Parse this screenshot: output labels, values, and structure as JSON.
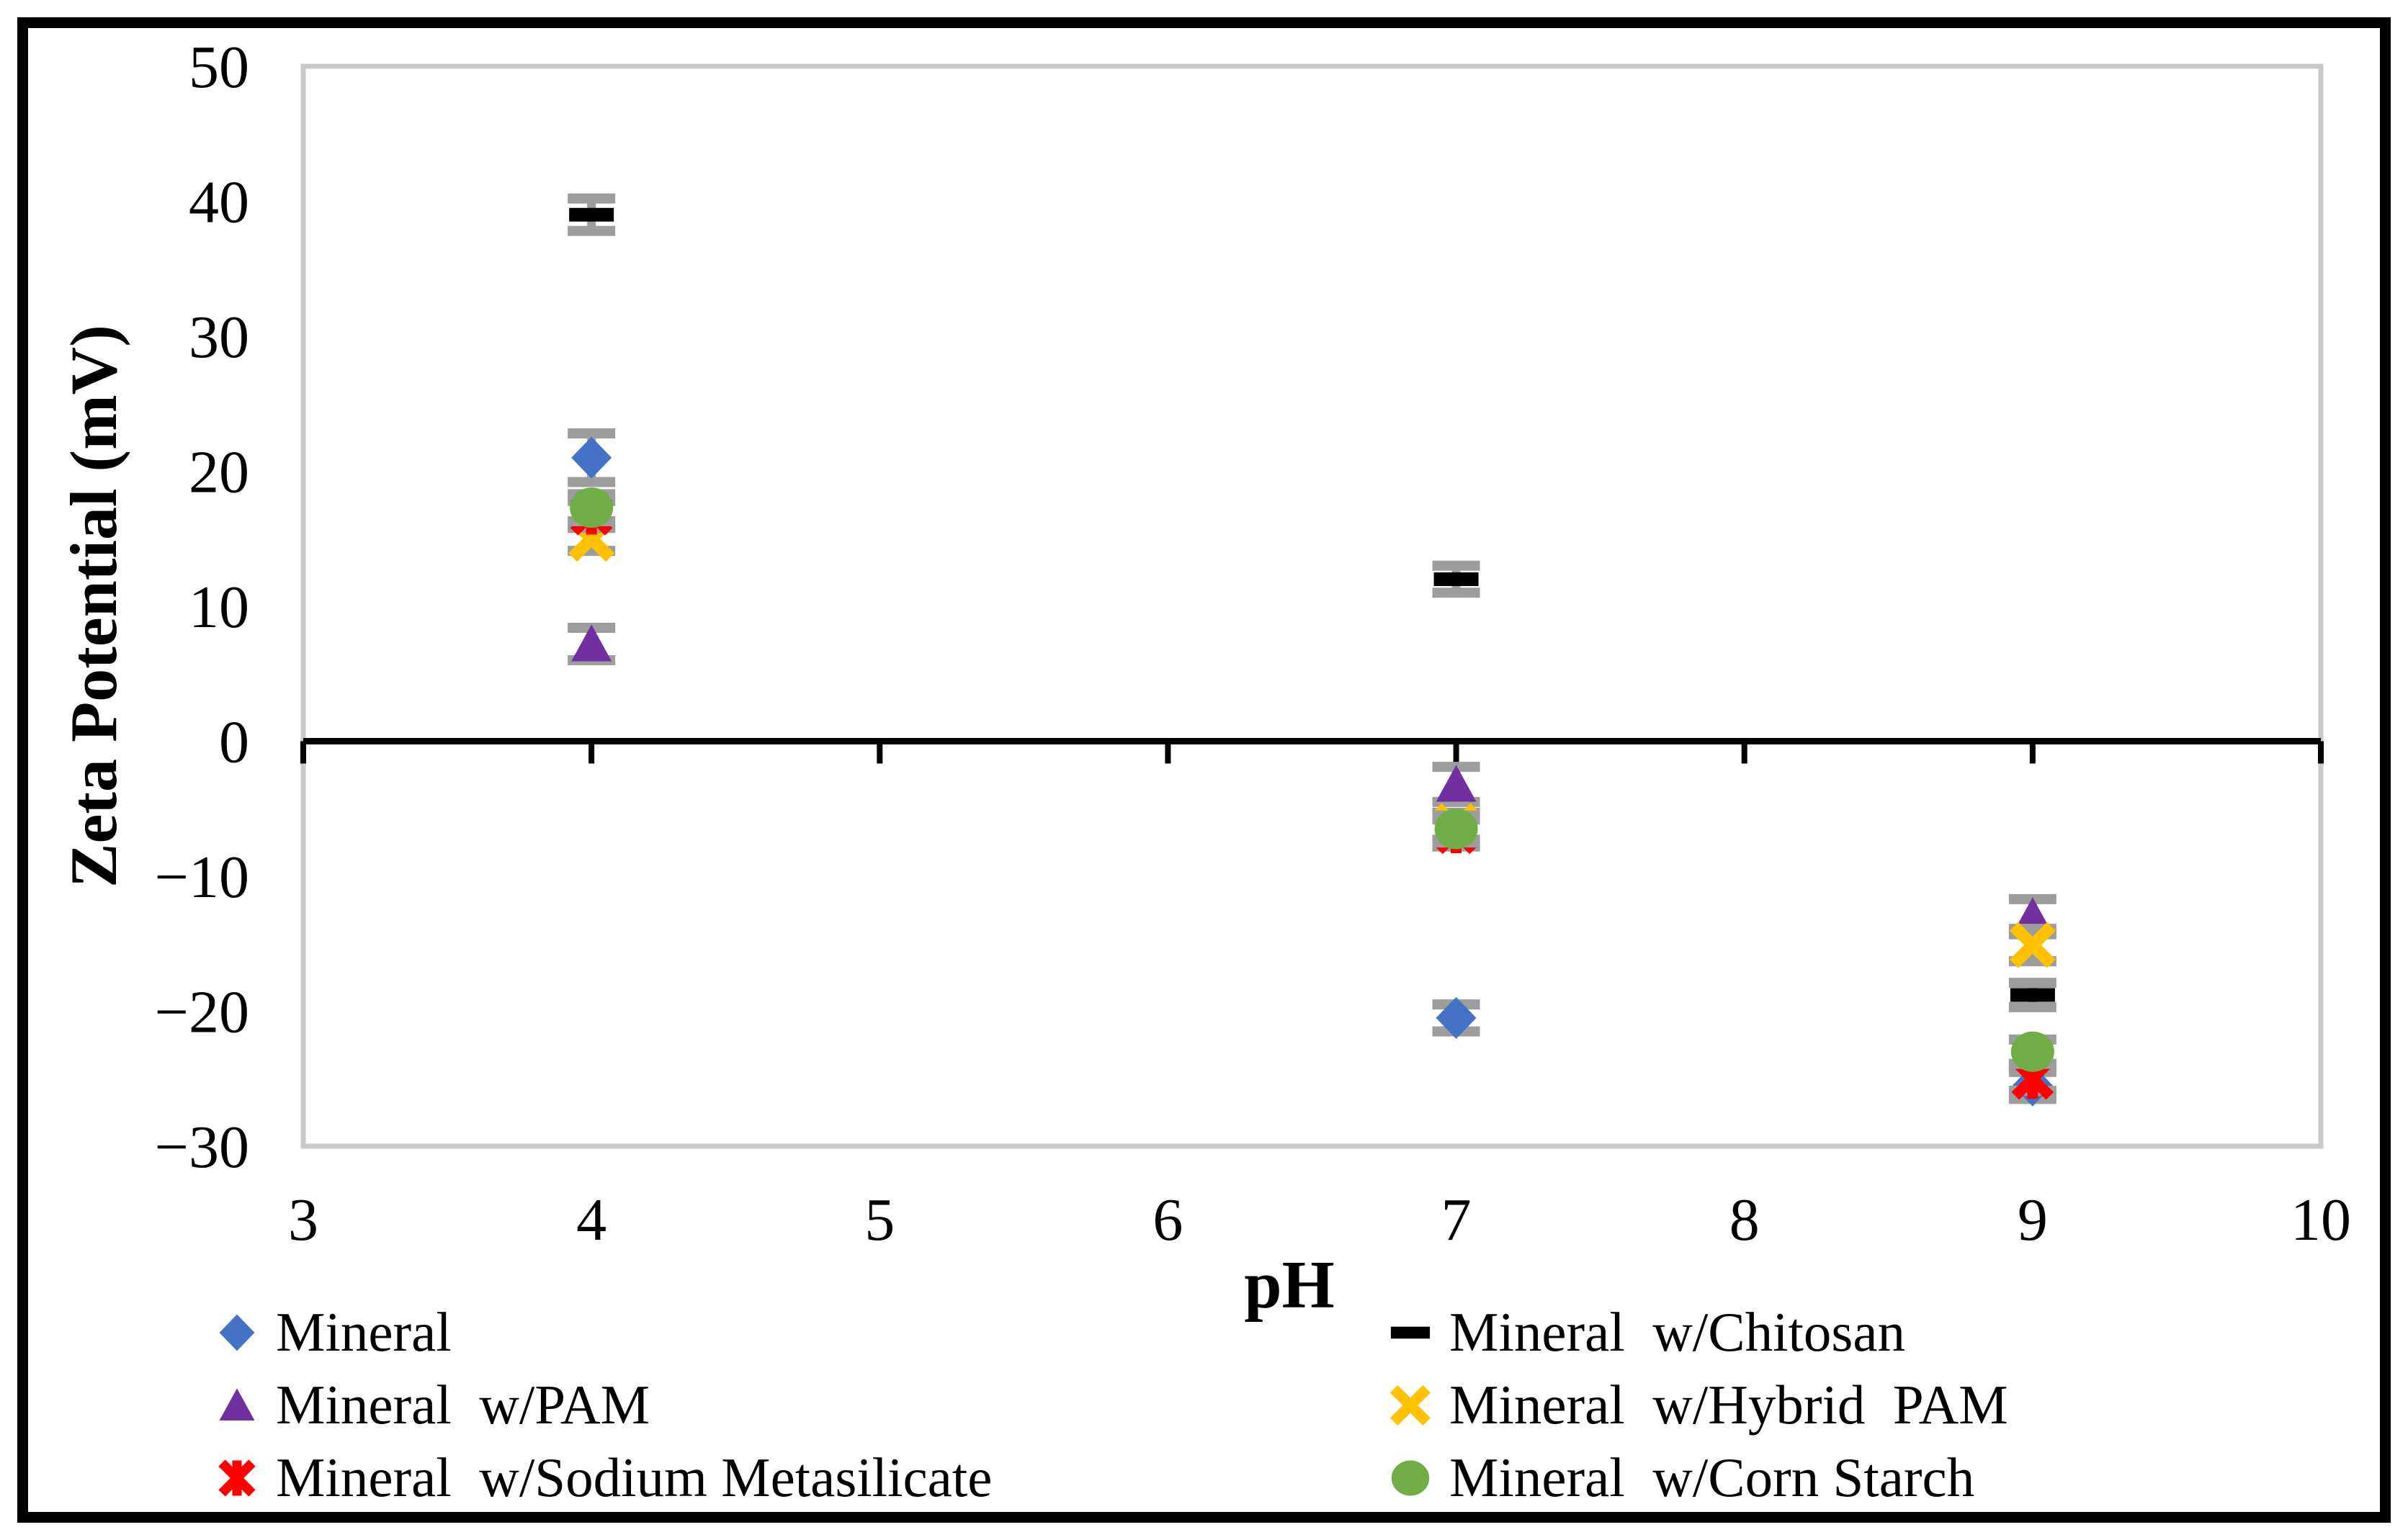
{
  "figure": {
    "background": "#FFFFFF",
    "frame_color": "#000000"
  },
  "chart_data": {
    "type": "scatter",
    "title": "",
    "xlabel": "pH",
    "ylabel": "Zeta Potential (mV)",
    "xlim": [
      3,
      10
    ],
    "ylim": [
      -30,
      50
    ],
    "x_ticks": [
      3,
      4,
      5,
      6,
      7,
      8,
      9,
      10
    ],
    "y_ticks": [
      50,
      40,
      30,
      20,
      10,
      0,
      -10,
      -20,
      -30
    ],
    "grid": false,
    "legend_position": "bottom-two-columns",
    "axis_line_color": "#000000",
    "plot_border_color": "#C9C9C9",
    "error_bar_color": "#9D9D9D",
    "series": [
      {
        "name": "Mineral",
        "marker": "diamond",
        "color": "#4472C4",
        "points": [
          {
            "x": 4,
            "y": 21.0,
            "err": 1.8
          },
          {
            "x": 7,
            "y": -20.5,
            "err": 1.0
          },
          {
            "x": 9,
            "y": -25.5,
            "err": 1.0
          }
        ]
      },
      {
        "name": "Mineral  w/Chitosan",
        "marker": "dash",
        "color": "#000000",
        "points": [
          {
            "x": 4,
            "y": 39.0,
            "err": 1.2
          },
          {
            "x": 7,
            "y": 12.0,
            "err": 1.0
          },
          {
            "x": 9,
            "y": -18.8,
            "err": 0.9
          }
        ]
      },
      {
        "name": "Mineral  w/PAM",
        "marker": "triangle",
        "color": "#7030A0",
        "points": [
          {
            "x": 4,
            "y": 7.2,
            "err": 1.2
          },
          {
            "x": 7,
            "y": -3.2,
            "err": 1.3
          },
          {
            "x": 9,
            "y": -13.0,
            "err": 1.3
          }
        ]
      },
      {
        "name": "Mineral  w/Hybrid  PAM",
        "marker": "x",
        "color": "#FFC000",
        "points": [
          {
            "x": 4,
            "y": 15.0,
            "err": 0.9
          },
          {
            "x": 7,
            "y": -6.3,
            "err": 1.0
          },
          {
            "x": 9,
            "y": -15.1,
            "err": 1.2
          }
        ]
      },
      {
        "name": "Mineral  w/Sodium Metasilicate",
        "marker": "asterisk",
        "color": "#FF0000",
        "points": [
          {
            "x": 4,
            "y": 16.8,
            "err": 1.0
          },
          {
            "x": 7,
            "y": -6.8,
            "err": 1.0
          },
          {
            "x": 9,
            "y": -25.0,
            "err": 0.9
          }
        ]
      },
      {
        "name": "Mineral  w/Corn Starch",
        "marker": "circle",
        "color": "#70AD47",
        "points": [
          {
            "x": 4,
            "y": 17.3,
            "err": 1.0
          },
          {
            "x": 7,
            "y": -6.5,
            "err": 1.0
          },
          {
            "x": 9,
            "y": -23.0,
            "err": 0.9
          }
        ]
      }
    ]
  },
  "legend": {
    "left_column": [
      0,
      2,
      4
    ],
    "right_column": [
      1,
      3,
      5
    ]
  }
}
